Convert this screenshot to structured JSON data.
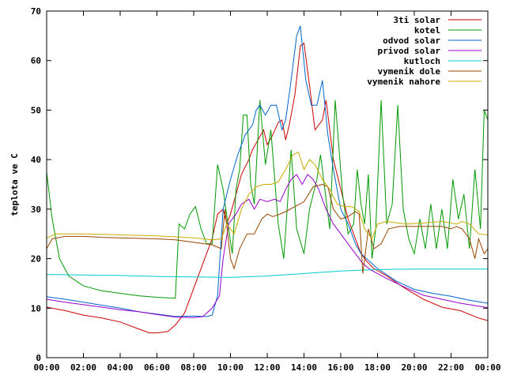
{
  "chart_data": {
    "type": "line",
    "ylabel": "teplota ve C",
    "xlim": [
      0,
      24
    ],
    "ylim": [
      0,
      70
    ],
    "grid": false,
    "legend_placement": "top-right",
    "x_ticks": [
      "00:00",
      "02:00",
      "04:00",
      "06:00",
      "08:00",
      "10:00",
      "12:00",
      "14:00",
      "16:00",
      "18:00",
      "20:00",
      "22:00",
      "00:00"
    ],
    "y_ticks": [
      0,
      10,
      20,
      30,
      40,
      50,
      60,
      70
    ],
    "series": [
      {
        "name": "3ti solar",
        "color": "#cc0000",
        "points": [
          [
            0,
            10.2
          ],
          [
            1,
            9.5
          ],
          [
            2,
            8.6
          ],
          [
            3,
            8.0
          ],
          [
            4,
            7.2
          ],
          [
            5,
            5.8
          ],
          [
            5.6,
            5.0
          ],
          [
            6,
            5.0
          ],
          [
            6.6,
            5.3
          ],
          [
            7,
            6.6
          ],
          [
            7.5,
            9
          ],
          [
            8,
            14
          ],
          [
            8.5,
            19
          ],
          [
            9,
            24
          ],
          [
            9.3,
            29
          ],
          [
            9.6,
            30
          ],
          [
            9.8,
            27
          ],
          [
            10,
            29
          ],
          [
            10.3,
            33
          ],
          [
            10.6,
            37
          ],
          [
            11,
            40
          ],
          [
            11.2,
            42
          ],
          [
            11.5,
            44
          ],
          [
            11.8,
            46
          ],
          [
            12,
            43
          ],
          [
            12.3,
            45
          ],
          [
            12.6,
            47.5
          ],
          [
            12.8,
            48
          ],
          [
            13,
            44
          ],
          [
            13.2,
            47
          ],
          [
            13.5,
            53
          ],
          [
            13.8,
            63
          ],
          [
            14,
            63.5
          ],
          [
            14.3,
            55
          ],
          [
            14.6,
            46
          ],
          [
            15,
            48
          ],
          [
            15.2,
            52
          ],
          [
            15.6,
            40
          ],
          [
            16,
            34
          ],
          [
            16.4,
            28
          ],
          [
            16.8,
            24
          ],
          [
            17.1,
            21
          ],
          [
            17.4,
            19.5
          ],
          [
            17.8,
            18
          ],
          [
            18.5,
            16.5
          ],
          [
            19.5,
            14
          ],
          [
            20.5,
            11.8
          ],
          [
            21.5,
            10.2
          ],
          [
            22.5,
            9.5
          ],
          [
            23.5,
            8
          ],
          [
            24,
            7.5
          ]
        ]
      },
      {
        "name": "kotel",
        "color": "#009900",
        "points": [
          [
            0,
            37.5
          ],
          [
            0.3,
            28
          ],
          [
            0.7,
            20
          ],
          [
            1.2,
            16.5
          ],
          [
            2,
            14.5
          ],
          [
            3,
            13.5
          ],
          [
            4,
            13
          ],
          [
            5,
            12.5
          ],
          [
            6,
            12.2
          ],
          [
            7,
            12
          ],
          [
            7,
            12.2
          ],
          [
            7.2,
            27
          ],
          [
            7.5,
            26
          ],
          [
            7.8,
            29
          ],
          [
            8.1,
            30.5
          ],
          [
            8.4,
            26
          ],
          [
            8.7,
            23
          ],
          [
            9,
            23
          ],
          [
            9.3,
            39
          ],
          [
            9.6,
            34
          ],
          [
            9.9,
            26
          ],
          [
            10.1,
            21
          ],
          [
            10.3,
            34
          ],
          [
            10.5,
            38
          ],
          [
            10.7,
            49
          ],
          [
            10.9,
            49
          ],
          [
            11.1,
            35
          ],
          [
            11.3,
            31
          ],
          [
            11.6,
            52
          ],
          [
            11.9,
            39
          ],
          [
            12.2,
            46
          ],
          [
            12.6,
            27
          ],
          [
            12.9,
            20
          ],
          [
            13.1,
            31
          ],
          [
            13.3,
            42
          ],
          [
            13.6,
            26
          ],
          [
            14,
            21
          ],
          [
            14.3,
            30
          ],
          [
            14.7,
            36
          ],
          [
            14.9,
            41
          ],
          [
            15.2,
            32
          ],
          [
            15.4,
            26
          ],
          [
            15.7,
            52
          ],
          [
            16.1,
            33
          ],
          [
            16.4,
            25
          ],
          [
            16.7,
            27
          ],
          [
            16.9,
            38
          ],
          [
            17.1,
            31
          ],
          [
            17.3,
            27
          ],
          [
            17.5,
            37
          ],
          [
            17.7,
            20
          ],
          [
            17.9,
            26
          ],
          [
            18.2,
            52
          ],
          [
            18.5,
            27
          ],
          [
            18.8,
            31
          ],
          [
            19.1,
            51
          ],
          [
            19.4,
            30
          ],
          [
            19.7,
            24
          ],
          [
            20,
            21
          ],
          [
            20.3,
            28
          ],
          [
            20.6,
            22
          ],
          [
            20.9,
            31
          ],
          [
            21.2,
            22
          ],
          [
            21.5,
            30
          ],
          [
            21.8,
            22
          ],
          [
            22.1,
            36
          ],
          [
            22.4,
            28
          ],
          [
            22.7,
            33
          ],
          [
            23,
            22
          ],
          [
            23.3,
            38
          ],
          [
            23.6,
            26
          ],
          [
            23.8,
            50
          ],
          [
            24,
            48
          ]
        ]
      },
      {
        "name": "odvod solar",
        "color": "#0066cc",
        "points": [
          [
            0,
            12.3
          ],
          [
            1,
            11.8
          ],
          [
            2,
            11.2
          ],
          [
            3,
            10.6
          ],
          [
            4,
            10
          ],
          [
            5,
            9.3
          ],
          [
            6,
            8.8
          ],
          [
            7,
            8.3
          ],
          [
            8,
            8.4
          ],
          [
            8.7,
            8.3
          ],
          [
            9,
            8.6
          ],
          [
            9.3,
            12.5
          ],
          [
            9.6,
            30
          ],
          [
            10,
            36
          ],
          [
            10.4,
            41
          ],
          [
            10.8,
            45
          ],
          [
            11.2,
            47
          ],
          [
            11.4,
            50
          ],
          [
            11.6,
            51
          ],
          [
            11.9,
            49
          ],
          [
            12.2,
            51
          ],
          [
            12.5,
            51
          ],
          [
            12.8,
            46
          ],
          [
            13,
            48
          ],
          [
            13.3,
            56
          ],
          [
            13.6,
            65
          ],
          [
            13.8,
            67
          ],
          [
            14.1,
            56
          ],
          [
            14.4,
            51
          ],
          [
            14.7,
            51
          ],
          [
            15,
            56
          ],
          [
            15.3,
            45
          ],
          [
            15.6,
            38
          ],
          [
            16,
            30
          ],
          [
            16.4,
            27
          ],
          [
            16.8,
            23
          ],
          [
            17.1,
            21
          ],
          [
            17.4,
            20
          ],
          [
            18,
            18
          ],
          [
            19,
            15.5
          ],
          [
            20,
            13.8
          ],
          [
            21,
            13
          ],
          [
            22,
            12.4
          ],
          [
            23,
            11.6
          ],
          [
            24,
            11
          ]
        ]
      },
      {
        "name": "privod solar",
        "color": "#9900cc",
        "points": [
          [
            0,
            11.8
          ],
          [
            1,
            11.2
          ],
          [
            2,
            10.7
          ],
          [
            3,
            10.2
          ],
          [
            4,
            9.7
          ],
          [
            5,
            9.3
          ],
          [
            6,
            8.7
          ],
          [
            7,
            8.2
          ],
          [
            8,
            8.1
          ],
          [
            8.5,
            8.3
          ],
          [
            9,
            10
          ],
          [
            9.4,
            12.5
          ],
          [
            9.6,
            20
          ],
          [
            9.9,
            27
          ],
          [
            10.3,
            29
          ],
          [
            10.6,
            31
          ],
          [
            11,
            32
          ],
          [
            11.3,
            30
          ],
          [
            11.6,
            32
          ],
          [
            12,
            31.5
          ],
          [
            12.4,
            32
          ],
          [
            12.7,
            31.5
          ],
          [
            13,
            34
          ],
          [
            13.3,
            36
          ],
          [
            13.6,
            37
          ],
          [
            13.9,
            35
          ],
          [
            14.2,
            37
          ],
          [
            14.5,
            36
          ],
          [
            14.8,
            34
          ],
          [
            15.2,
            30
          ],
          [
            15.6,
            27
          ],
          [
            16,
            25
          ],
          [
            16.4,
            23
          ],
          [
            16.8,
            21
          ],
          [
            17.2,
            19
          ],
          [
            17.6,
            17.8
          ],
          [
            18.5,
            16
          ],
          [
            19.5,
            14.2
          ],
          [
            20.5,
            12.6
          ],
          [
            21.5,
            11.8
          ],
          [
            22.5,
            11
          ],
          [
            23.5,
            10.4
          ],
          [
            24,
            10.1
          ]
        ]
      },
      {
        "name": "kutloch",
        "color": "#00cccc",
        "points": [
          [
            0,
            16.8
          ],
          [
            2,
            16.7
          ],
          [
            4,
            16.6
          ],
          [
            6,
            16.4
          ],
          [
            8,
            16.3
          ],
          [
            10,
            16.2
          ],
          [
            12,
            16.5
          ],
          [
            14,
            17
          ],
          [
            16,
            17.5
          ],
          [
            18,
            17.8
          ],
          [
            20,
            17.9
          ],
          [
            22,
            17.9
          ],
          [
            24,
            17.9
          ]
        ]
      },
      {
        "name": "vymenik dole",
        "color": "#994400",
        "points": [
          [
            0,
            22
          ],
          [
            0.3,
            24
          ],
          [
            1,
            24.5
          ],
          [
            2,
            24.5
          ],
          [
            3,
            24.3
          ],
          [
            4,
            24.2
          ],
          [
            5,
            24.1
          ],
          [
            6,
            24
          ],
          [
            7,
            23.8
          ],
          [
            8,
            23.3
          ],
          [
            9,
            22.8
          ],
          [
            9.5,
            22
          ],
          [
            9.7,
            30
          ],
          [
            10,
            20
          ],
          [
            10.2,
            18
          ],
          [
            10.5,
            22
          ],
          [
            10.9,
            25
          ],
          [
            11.3,
            25
          ],
          [
            11.7,
            28
          ],
          [
            12,
            29
          ],
          [
            12.3,
            28.5
          ],
          [
            12.7,
            29
          ],
          [
            13,
            29.5
          ],
          [
            13.5,
            30.5
          ],
          [
            14,
            31.5
          ],
          [
            14.5,
            34.5
          ],
          [
            15,
            35
          ],
          [
            15.3,
            34.5
          ],
          [
            15.6,
            30
          ],
          [
            16,
            28
          ],
          [
            16.4,
            28.5
          ],
          [
            16.8,
            29.5
          ],
          [
            17,
            29
          ],
          [
            17.2,
            17
          ],
          [
            17.5,
            26
          ],
          [
            17.8,
            22
          ],
          [
            18.2,
            23
          ],
          [
            18.6,
            26
          ],
          [
            19.2,
            26.5
          ],
          [
            20,
            26.5
          ],
          [
            21,
            26.5
          ],
          [
            21.5,
            26.5
          ],
          [
            22,
            26
          ],
          [
            22.3,
            26.5
          ],
          [
            22.6,
            26
          ],
          [
            23,
            24
          ],
          [
            23.3,
            20
          ],
          [
            23.5,
            24
          ],
          [
            23.8,
            21
          ],
          [
            24,
            22
          ]
        ]
      },
      {
        "name": "vymenik nahore",
        "color": "#ccaa00",
        "points": [
          [
            0,
            24.2
          ],
          [
            0.5,
            25
          ],
          [
            1,
            25
          ],
          [
            2,
            25
          ],
          [
            3,
            24.9
          ],
          [
            4,
            24.8
          ],
          [
            5,
            24.7
          ],
          [
            6,
            24.6
          ],
          [
            7,
            24.4
          ],
          [
            8,
            24.2
          ],
          [
            9,
            23.8
          ],
          [
            9.5,
            24
          ],
          [
            9.8,
            27
          ],
          [
            10.2,
            25
          ],
          [
            10.6,
            30
          ],
          [
            11,
            33
          ],
          [
            11.4,
            34.5
          ],
          [
            11.8,
            35
          ],
          [
            12.2,
            35
          ],
          [
            12.6,
            35.5
          ],
          [
            13,
            38
          ],
          [
            13.4,
            41
          ],
          [
            13.7,
            41.5
          ],
          [
            14,
            38
          ],
          [
            14.3,
            40
          ],
          [
            14.6,
            39
          ],
          [
            15,
            36
          ],
          [
            15.4,
            34
          ],
          [
            15.8,
            31
          ],
          [
            16.2,
            30.5
          ],
          [
            16.6,
            30.5
          ],
          [
            17,
            29.5
          ],
          [
            17.3,
            26
          ],
          [
            17.7,
            24
          ],
          [
            18,
            27
          ],
          [
            18.5,
            27.5
          ],
          [
            19.5,
            27
          ],
          [
            20.5,
            27.2
          ],
          [
            21.5,
            27.5
          ],
          [
            22.3,
            27
          ],
          [
            22.6,
            27.5
          ],
          [
            23,
            27
          ],
          [
            23.5,
            25
          ],
          [
            24,
            24.8
          ]
        ]
      }
    ]
  }
}
